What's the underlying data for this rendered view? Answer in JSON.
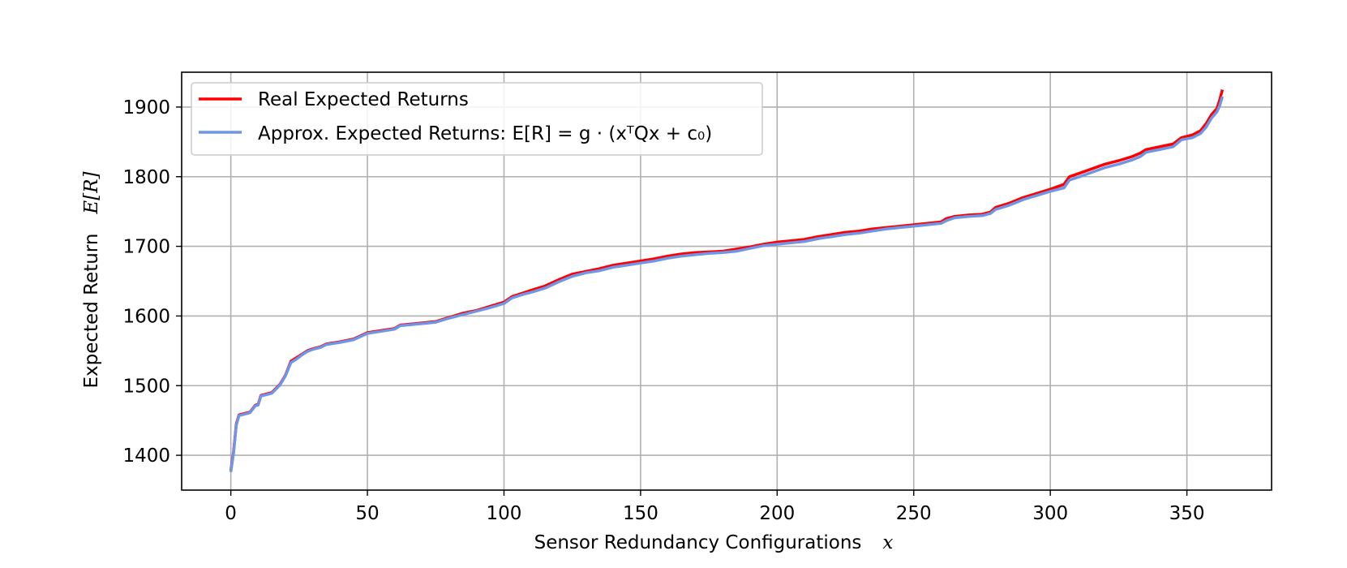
{
  "chart_data": {
    "type": "line",
    "xlabel": "Sensor Redundancy Configurations",
    "xlabel_symbol": "x",
    "ylabel": "Expected Return",
    "ylabel_symbol": "E[R]",
    "xlim": [
      -18,
      381
    ],
    "ylim": [
      1350,
      1950
    ],
    "xticks": [
      0,
      50,
      100,
      150,
      200,
      250,
      300,
      350
    ],
    "yticks": [
      1400,
      1500,
      1600,
      1700,
      1800,
      1900
    ],
    "grid": true,
    "legend_position": "top-left",
    "series": [
      {
        "name": "Real Expected Returns",
        "color": "#ff0000",
        "points": [
          [
            0,
            1378
          ],
          [
            1,
            1405
          ],
          [
            2,
            1445
          ],
          [
            3,
            1458
          ],
          [
            5,
            1460
          ],
          [
            7,
            1462
          ],
          [
            9,
            1472
          ],
          [
            10,
            1473
          ],
          [
            11,
            1486
          ],
          [
            13,
            1488
          ],
          [
            15,
            1490
          ],
          [
            18,
            1502
          ],
          [
            20,
            1515
          ],
          [
            22,
            1535
          ],
          [
            24,
            1540
          ],
          [
            26,
            1545
          ],
          [
            28,
            1550
          ],
          [
            30,
            1553
          ],
          [
            33,
            1556
          ],
          [
            35,
            1560
          ],
          [
            40,
            1563
          ],
          [
            45,
            1567
          ],
          [
            50,
            1576
          ],
          [
            55,
            1579
          ],
          [
            60,
            1582
          ],
          [
            62,
            1587
          ],
          [
            70,
            1590
          ],
          [
            75,
            1592
          ],
          [
            80,
            1598
          ],
          [
            85,
            1604
          ],
          [
            90,
            1608
          ],
          [
            95,
            1614
          ],
          [
            100,
            1620
          ],
          [
            103,
            1628
          ],
          [
            107,
            1633
          ],
          [
            110,
            1637
          ],
          [
            115,
            1643
          ],
          [
            120,
            1652
          ],
          [
            125,
            1660
          ],
          [
            130,
            1664
          ],
          [
            135,
            1668
          ],
          [
            140,
            1673
          ],
          [
            145,
            1676
          ],
          [
            150,
            1679
          ],
          [
            155,
            1682
          ],
          [
            160,
            1686
          ],
          [
            165,
            1689
          ],
          [
            170,
            1691
          ],
          [
            175,
            1692
          ],
          [
            180,
            1693
          ],
          [
            185,
            1696
          ],
          [
            190,
            1699
          ],
          [
            195,
            1703
          ],
          [
            200,
            1706
          ],
          [
            205,
            1708
          ],
          [
            210,
            1710
          ],
          [
            215,
            1714
          ],
          [
            220,
            1717
          ],
          [
            225,
            1720
          ],
          [
            230,
            1722
          ],
          [
            235,
            1725
          ],
          [
            240,
            1727
          ],
          [
            245,
            1729
          ],
          [
            250,
            1731
          ],
          [
            255,
            1733
          ],
          [
            260,
            1735
          ],
          [
            262,
            1740
          ],
          [
            265,
            1743
          ],
          [
            270,
            1745
          ],
          [
            275,
            1746
          ],
          [
            278,
            1749
          ],
          [
            280,
            1756
          ],
          [
            285,
            1762
          ],
          [
            290,
            1770
          ],
          [
            295,
            1776
          ],
          [
            300,
            1782
          ],
          [
            305,
            1789
          ],
          [
            307,
            1800
          ],
          [
            310,
            1804
          ],
          [
            315,
            1811
          ],
          [
            320,
            1818
          ],
          [
            325,
            1823
          ],
          [
            330,
            1829
          ],
          [
            333,
            1834
          ],
          [
            335,
            1839
          ],
          [
            340,
            1843
          ],
          [
            345,
            1847
          ],
          [
            348,
            1856
          ],
          [
            352,
            1860
          ],
          [
            355,
            1866
          ],
          [
            357,
            1876
          ],
          [
            359,
            1889
          ],
          [
            361,
            1898
          ],
          [
            362,
            1910
          ],
          [
            363,
            1925
          ]
        ]
      },
      {
        "name": "Approx. Expected Returns: E[R] = g · (xᵀQx + c₀)",
        "color": "#6f96e6",
        "points": [
          [
            0,
            1376
          ],
          [
            1,
            1403
          ],
          [
            2,
            1443
          ],
          [
            3,
            1457
          ],
          [
            5,
            1459
          ],
          [
            7,
            1461
          ],
          [
            9,
            1471
          ],
          [
            10,
            1472
          ],
          [
            11,
            1485
          ],
          [
            13,
            1487
          ],
          [
            15,
            1489
          ],
          [
            18,
            1501
          ],
          [
            20,
            1514
          ],
          [
            22,
            1533
          ],
          [
            24,
            1538
          ],
          [
            26,
            1544
          ],
          [
            28,
            1549
          ],
          [
            30,
            1552
          ],
          [
            33,
            1555
          ],
          [
            35,
            1559
          ],
          [
            40,
            1562
          ],
          [
            45,
            1566
          ],
          [
            50,
            1575
          ],
          [
            55,
            1578
          ],
          [
            60,
            1581
          ],
          [
            62,
            1586
          ],
          [
            70,
            1589
          ],
          [
            75,
            1591
          ],
          [
            80,
            1597
          ],
          [
            85,
            1602
          ],
          [
            90,
            1607
          ],
          [
            95,
            1612
          ],
          [
            100,
            1618
          ],
          [
            103,
            1626
          ],
          [
            107,
            1631
          ],
          [
            110,
            1634
          ],
          [
            115,
            1640
          ],
          [
            120,
            1649
          ],
          [
            125,
            1657
          ],
          [
            130,
            1662
          ],
          [
            135,
            1665
          ],
          [
            140,
            1670
          ],
          [
            145,
            1673
          ],
          [
            150,
            1676
          ],
          [
            155,
            1679
          ],
          [
            160,
            1683
          ],
          [
            165,
            1686
          ],
          [
            170,
            1688
          ],
          [
            175,
            1690
          ],
          [
            180,
            1691
          ],
          [
            185,
            1693
          ],
          [
            190,
            1697
          ],
          [
            195,
            1701
          ],
          [
            200,
            1703
          ],
          [
            205,
            1705
          ],
          [
            210,
            1707
          ],
          [
            215,
            1711
          ],
          [
            220,
            1714
          ],
          [
            225,
            1717
          ],
          [
            230,
            1719
          ],
          [
            235,
            1722
          ],
          [
            240,
            1725
          ],
          [
            245,
            1727
          ],
          [
            250,
            1729
          ],
          [
            255,
            1731
          ],
          [
            260,
            1733
          ],
          [
            262,
            1737
          ],
          [
            265,
            1741
          ],
          [
            270,
            1743
          ],
          [
            275,
            1744
          ],
          [
            278,
            1747
          ],
          [
            280,
            1753
          ],
          [
            285,
            1759
          ],
          [
            290,
            1767
          ],
          [
            295,
            1773
          ],
          [
            300,
            1779
          ],
          [
            305,
            1784
          ],
          [
            307,
            1795
          ],
          [
            310,
            1799
          ],
          [
            315,
            1806
          ],
          [
            320,
            1813
          ],
          [
            325,
            1818
          ],
          [
            330,
            1824
          ],
          [
            333,
            1829
          ],
          [
            335,
            1835
          ],
          [
            340,
            1839
          ],
          [
            345,
            1843
          ],
          [
            348,
            1853
          ],
          [
            352,
            1856
          ],
          [
            355,
            1862
          ],
          [
            357,
            1871
          ],
          [
            359,
            1884
          ],
          [
            361,
            1893
          ],
          [
            362,
            1902
          ],
          [
            363,
            1915
          ]
        ]
      }
    ]
  }
}
